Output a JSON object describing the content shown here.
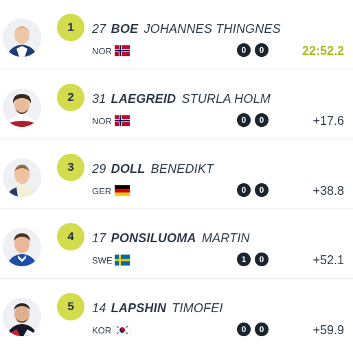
{
  "results": [
    {
      "rank": "1",
      "bib": "27",
      "last_name": "BOE",
      "first_name": "JOHANNES THINGNES",
      "country": "NOR",
      "flag": "norway-flag",
      "shooting": [
        "0",
        "0"
      ],
      "result": "22:52.2"
    },
    {
      "rank": "2",
      "bib": "31",
      "last_name": "LAEGREID",
      "first_name": "STURLA HOLM",
      "country": "NOR",
      "flag": "norway-flag",
      "shooting": [
        "0",
        "0"
      ],
      "result": "+17.6"
    },
    {
      "rank": "3",
      "bib": "29",
      "last_name": "DOLL",
      "first_name": "BENEDIKT",
      "country": "GER",
      "flag": "germany-flag",
      "shooting": [
        "0",
        "0"
      ],
      "result": "+38.8"
    },
    {
      "rank": "4",
      "bib": "17",
      "last_name": "PONSILUOMA",
      "first_name": "MARTIN",
      "country": "SWE",
      "flag": "sweden-flag",
      "shooting": [
        "1",
        "0"
      ],
      "result": "+52.1"
    },
    {
      "rank": "5",
      "bib": "14",
      "last_name": "LAPSHIN",
      "first_name": "TIMOFEI",
      "country": "KOR",
      "flag": "korea-flag",
      "shooting": [
        "0",
        "0"
      ],
      "result": "+59.9"
    }
  ],
  "colors": {
    "rank_badge": "#d2dc4c",
    "leader_time": "#a7bd1e",
    "shooting_dot": "#1a2530",
    "divider": "#e2e4e8"
  }
}
